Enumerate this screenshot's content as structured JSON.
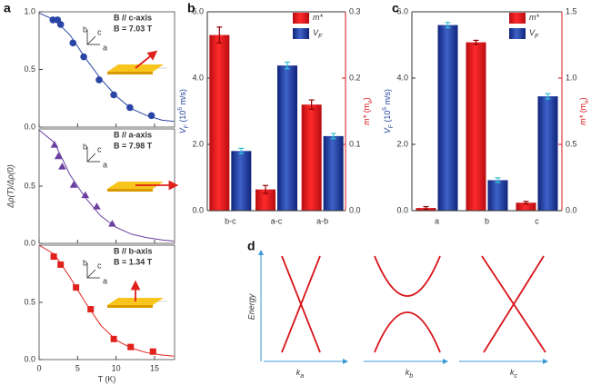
{
  "chart_data": [
    {
      "type": "scatter",
      "panel": "a",
      "y_label": "Δρ(T)/Δρ(0)",
      "color": "#2a45a5",
      "marker": "circle",
      "xlim": [
        0,
        17.6
      ],
      "xticks": [
        0,
        5,
        10,
        15
      ],
      "ylim": [
        0,
        1.0
      ],
      "yticks": [
        {
          "value": 0,
          "label": "0.0"
        },
        {
          "value": 0.5,
          "label": "0.5"
        },
        {
          "value": 1.0,
          "label": "1.0"
        }
      ],
      "points": {
        "x": [
          1.8,
          2.4,
          2.8,
          4.4,
          5.8,
          7.8,
          9.7,
          11.8,
          14.6
        ],
        "y": [
          0.93,
          0.93,
          0.89,
          0.73,
          0.61,
          0.41,
          0.28,
          0.17,
          0.1
        ]
      },
      "fit": {
        "x": [
          0,
          2,
          4,
          6,
          8,
          10,
          12,
          14,
          16,
          17.5
        ],
        "y": [
          0.99,
          0.93,
          0.8,
          0.6,
          0.42,
          0.27,
          0.16,
          0.1,
          0.06,
          0.05
        ]
      },
      "annotation": [
        "B // c-axis",
        "B = 7.03 T"
      ],
      "axis_icon_labels": [
        "b",
        "c",
        "a"
      ]
    },
    {
      "type": "scatter",
      "color": "#6b3fa0",
      "marker": "triangle",
      "xlim": [
        0,
        17.6
      ],
      "xticks": [
        0,
        5,
        10,
        15
      ],
      "ylim": [
        0,
        1.0
      ],
      "yticks": [
        {
          "value": 0,
          "label": "0.0"
        },
        {
          "value": 0.5,
          "label": "0.5"
        }
      ],
      "points": {
        "x": [
          2.0,
          2.5,
          3.0,
          4.5,
          6.0,
          7.5,
          9.5
        ],
        "y": [
          0.86,
          0.76,
          0.67,
          0.51,
          0.42,
          0.32,
          0.17
        ]
      },
      "fit": {
        "x": [
          0,
          2,
          4,
          6,
          8,
          10,
          12,
          14,
          16,
          17.5
        ],
        "y": [
          0.99,
          0.88,
          0.6,
          0.4,
          0.24,
          0.14,
          0.08,
          0.05,
          0.03,
          0.02
        ]
      },
      "annotation": [
        "B // a-axis",
        "B = 7.98 T"
      ],
      "axis_icon_labels": [
        "b",
        "c",
        "a"
      ]
    },
    {
      "type": "scatter",
      "x_label": "T (K)",
      "color": "#e0201b",
      "marker": "square",
      "xlim": [
        0,
        17.6
      ],
      "xticks": [
        0,
        5,
        10,
        15
      ],
      "ylim": [
        0,
        1.0
      ],
      "yticks": [
        {
          "value": 0,
          "label": "0.0"
        },
        {
          "value": 0.5,
          "label": "0.5"
        }
      ],
      "points": {
        "x": [
          1.9,
          2.8,
          4.8,
          6.7,
          9.7,
          11.9,
          14.8
        ],
        "y": [
          0.9,
          0.83,
          0.63,
          0.44,
          0.18,
          0.11,
          0.07
        ]
      },
      "fit": {
        "x": [
          0,
          2,
          4,
          6,
          8,
          10,
          12,
          14,
          16,
          17.5
        ],
        "y": [
          1.0,
          0.92,
          0.72,
          0.5,
          0.3,
          0.17,
          0.1,
          0.06,
          0.04,
          0.03
        ]
      },
      "annotation": [
        "B // b-axis",
        "B = 1.34 T"
      ],
      "axis_icon_labels": [
        "b",
        "c",
        "a"
      ]
    },
    {
      "type": "bar",
      "panel": "b",
      "categories": [
        "b-c",
        "a-c",
        "a-b"
      ],
      "y_label": [
        "V",
        "F",
        " (10",
        "5",
        " m/s)"
      ],
      "y2_label": [
        "m*",
        " (m",
        "e",
        ")"
      ],
      "ylim": [
        0,
        6.0
      ],
      "yticks": [
        {
          "value": 0,
          "label": "0.0"
        },
        {
          "value": 2,
          "label": "2.0"
        },
        {
          "value": 4,
          "label": "4.0"
        },
        {
          "value": 6,
          "label": "6.0"
        }
      ],
      "y2lim": [
        0,
        0.3
      ],
      "y2ticks": [
        {
          "value": 0,
          "label": "0.0"
        },
        0.1,
        0.2,
        0.3
      ],
      "series": [
        {
          "name": "m*",
          "color": "#e3191c",
          "error_color": "#8b0000",
          "axis": "y2",
          "values": [
            0.265,
            0.032,
            0.16
          ],
          "errors": [
            0.012,
            0.006,
            0.007
          ]
        },
        {
          "name": "V",
          "name_subscript": "F",
          "color": "#1f3f9a",
          "error_color": "#2ec4d4",
          "values": [
            1.8,
            4.38,
            2.25
          ],
          "errors": [
            0.08,
            0.1,
            0.08
          ]
        }
      ]
    },
    {
      "type": "bar",
      "panel": "c",
      "categories": [
        "a",
        "b",
        "c"
      ],
      "y_label": [
        "V",
        "F",
        " (10",
        "5",
        " m/s)"
      ],
      "y2_label": [
        "m*",
        " (m",
        "e",
        ")"
      ],
      "ylim": [
        0,
        6.0
      ],
      "yticks": [
        {
          "value": 0,
          "label": "0.0"
        },
        {
          "value": 2,
          "label": "2.0"
        },
        {
          "value": 4,
          "label": "4.0"
        },
        {
          "value": 6,
          "label": "6.0"
        }
      ],
      "y2lim": [
        0,
        1.5
      ],
      "y2ticks": [
        {
          "value": 0,
          "label": "0.0"
        },
        0.5,
        {
          "value": 1,
          "label": "1.0"
        },
        1.5
      ],
      "series": [
        {
          "name": "m*",
          "color": "#e3191c",
          "error_color": "#8b0000",
          "axis": "y2",
          "values": [
            0.02,
            1.27,
            0.06
          ],
          "errors": [
            0.01,
            0.015,
            0.01
          ]
        },
        {
          "name": "V",
          "name_subscript": "F",
          "color": "#1f3f9a",
          "error_color": "#2ec4d4",
          "values": [
            5.6,
            0.92,
            3.45
          ],
          "errors": [
            0.08,
            0.07,
            0.08
          ]
        }
      ]
    }
  ],
  "diagram": {
    "panel": "d",
    "y_label": "Energy",
    "x_labels": [
      {
        "text": "k",
        "sub": "a"
      },
      {
        "text": "k",
        "sub": "b"
      },
      {
        "text": "k",
        "sub": "c"
      }
    ]
  }
}
